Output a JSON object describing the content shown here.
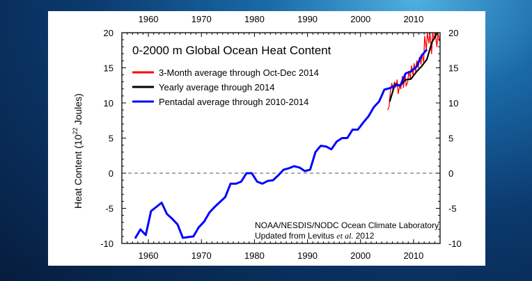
{
  "chart_data": {
    "type": "line",
    "title": "0-2000 m Global Ocean Heat Content",
    "ylabel_main": "Heat Content (10",
    "ylabel_sup": "22",
    "ylabel_tail": " Joules)",
    "xlim": [
      1955,
      2015
    ],
    "ylim": [
      -10,
      20
    ],
    "xticks": [
      1960,
      1970,
      1980,
      1990,
      2000,
      2010
    ],
    "yticks": [
      -10,
      -5,
      0,
      5,
      10,
      15,
      20
    ],
    "zero_line": "dashed",
    "legend_position": "top-left",
    "credit_line1": "NOAA/NESDIS/NODC Ocean Climate Laboratory",
    "credit_line2_pre": "Updated from Levitus ",
    "credit_line2_italic": "et al.",
    "credit_line2_post": " 2012",
    "series": [
      {
        "name": "3-Month average through Oct-Dec 2014",
        "color": "#ff0000",
        "x": [
          2005.1,
          2005.4,
          2005.6,
          2005.9,
          2006.1,
          2006.4,
          2006.6,
          2006.9,
          2007.1,
          2007.4,
          2007.6,
          2007.9,
          2008.1,
          2008.4,
          2008.6,
          2008.9,
          2009.1,
          2009.4,
          2009.6,
          2009.9,
          2010.1,
          2010.4,
          2010.6,
          2010.9,
          2011.1,
          2011.4,
          2011.6,
          2011.9,
          2012.1,
          2012.4,
          2012.6,
          2012.9,
          2013.1,
          2013.4,
          2013.6,
          2013.9,
          2014.1,
          2014.4,
          2014.6,
          2014.9
        ],
        "y": [
          9.0,
          9.5,
          11.5,
          12.8,
          11.8,
          13.0,
          12.2,
          13.3,
          11.3,
          12.5,
          12.0,
          13.8,
          12.2,
          14.2,
          12.4,
          13.0,
          14.5,
          13.5,
          15.3,
          14.0,
          15.6,
          14.5,
          16.0,
          15.0,
          16.5,
          15.5,
          17.0,
          15.8,
          19.5,
          17.5,
          20.0,
          18.5,
          20.0,
          17.0,
          20.0,
          19.0,
          20.0,
          18.0,
          20.0,
          18.8
        ]
      },
      {
        "name": "Yearly average through 2014",
        "color": "#000000",
        "x": [
          2005.5,
          2006.5,
          2007.5,
          2008.5,
          2009.5,
          2010.5,
          2011.5,
          2012.5,
          2013.5,
          2014.5
        ],
        "y": [
          10.2,
          12.7,
          12.5,
          13.3,
          13.4,
          14.4,
          15.2,
          16.2,
          18.7,
          20.0
        ]
      },
      {
        "name": "Pentadal average through 2010-2014",
        "color": "#0000ff",
        "x": [
          1957.5,
          1958.5,
          1959.5,
          1960.5,
          1961.5,
          1962.5,
          1963.5,
          1964.5,
          1965.5,
          1966.5,
          1967.5,
          1968.5,
          1969.5,
          1970.5,
          1971.5,
          1972.5,
          1973.5,
          1974.5,
          1975.5,
          1976.5,
          1977.5,
          1978.5,
          1979.5,
          1980.5,
          1981.5,
          1982.5,
          1983.5,
          1984.5,
          1985.5,
          1986.5,
          1987.5,
          1988.5,
          1989.5,
          1990.5,
          1991.5,
          1992.5,
          1993.5,
          1994.5,
          1995.5,
          1996.5,
          1997.5,
          1998.5,
          1999.5,
          2000.5,
          2001.5,
          2002.5,
          2003.5,
          2004.5,
          2005.5,
          2006.5,
          2007.5,
          2008.5,
          2009.5,
          2010.5,
          2011.5,
          2012.5
        ],
        "y": [
          -9.3,
          -8.0,
          -8.8,
          -5.4,
          -4.8,
          -4.2,
          -5.8,
          -6.5,
          -7.3,
          -9.2,
          -9.1,
          -9.0,
          -7.7,
          -6.9,
          -5.6,
          -4.8,
          -4.1,
          -3.4,
          -1.5,
          -1.5,
          -1.2,
          0.0,
          0.0,
          -1.2,
          -1.5,
          -1.1,
          -1.0,
          -0.3,
          0.5,
          0.7,
          1.0,
          0.8,
          0.3,
          0.5,
          3.0,
          3.9,
          3.8,
          3.4,
          4.5,
          5.0,
          5.0,
          6.2,
          6.2,
          7.2,
          8.1,
          9.4,
          10.2,
          11.9,
          12.1,
          12.5,
          12.5,
          14.2,
          14.5,
          15.1,
          16.7,
          17.6
        ]
      }
    ]
  }
}
